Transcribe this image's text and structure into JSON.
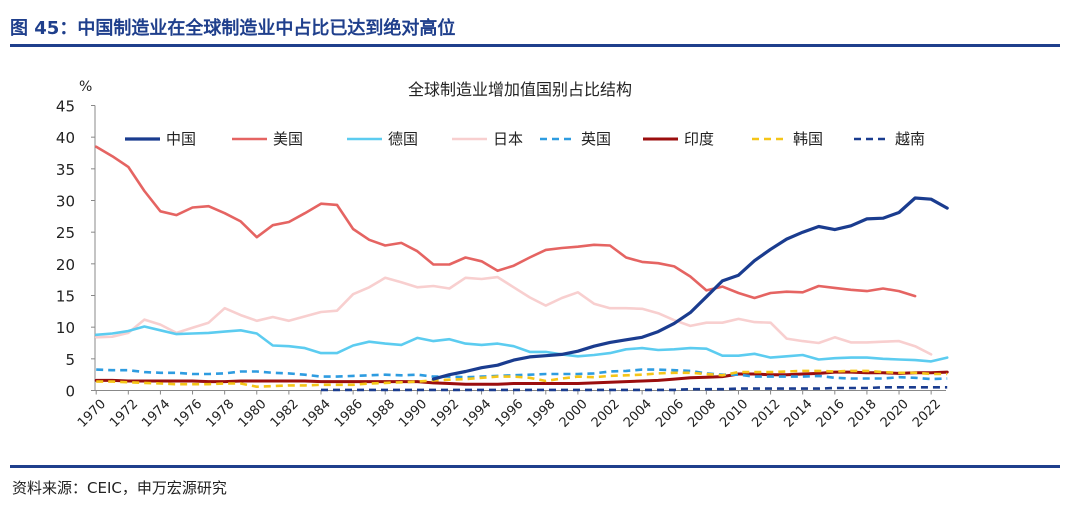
{
  "header": {
    "title": "图 45：中国制造业在全球制造业中占比已达到绝对高位"
  },
  "source": {
    "text": "资料来源：CEIC，申万宏源研究"
  },
  "chart_data": {
    "type": "line",
    "title": "全球制造业增加值国别占比结构",
    "ylabel": "%",
    "xlabel": "",
    "ylim": [
      0,
      45
    ],
    "yticks": [
      0,
      5,
      10,
      15,
      20,
      25,
      30,
      35,
      40,
      45
    ],
    "xticks": [
      1970,
      1972,
      1974,
      1976,
      1978,
      1980,
      1982,
      1984,
      1986,
      1988,
      1990,
      1992,
      1994,
      1996,
      1998,
      2000,
      2002,
      2004,
      2006,
      2008,
      2010,
      2012,
      2014,
      2016,
      2018,
      2020,
      2022
    ],
    "grid": false,
    "legend_position": "top",
    "series": [
      {
        "name": "中国",
        "color": "#1A3C8F",
        "dash": "solid",
        "width": 3.2,
        "x": [
          1991,
          1992,
          1993,
          1994,
          1995,
          1996,
          1997,
          1998,
          1999,
          2000,
          2001,
          2002,
          2003,
          2004,
          2005,
          2006,
          2007,
          2008,
          2009,
          2010,
          2011,
          2012,
          2013,
          2014,
          2015,
          2016,
          2017,
          2018,
          2019,
          2020,
          2021,
          2022,
          2023
        ],
        "values": [
          1.8,
          2.5,
          3.0,
          3.6,
          4.0,
          4.8,
          5.3,
          5.5,
          5.7,
          6.2,
          7.0,
          7.6,
          8.0,
          8.4,
          9.3,
          10.6,
          12.3,
          14.8,
          17.3,
          18.2,
          20.5,
          22.3,
          23.9,
          25.0,
          25.9,
          25.4,
          26.0,
          27.1,
          27.2,
          28.1,
          30.4,
          30.2,
          28.8
        ]
      },
      {
        "name": "美国",
        "color": "#E56462",
        "dash": "solid",
        "width": 2.6,
        "x": [
          1970,
          1971,
          1972,
          1973,
          1974,
          1975,
          1976,
          1977,
          1978,
          1979,
          1980,
          1981,
          1982,
          1983,
          1984,
          1985,
          1986,
          1987,
          1988,
          1989,
          1990,
          1991,
          1992,
          1993,
          1994,
          1995,
          1996,
          1997,
          1998,
          1999,
          2000,
          2001,
          2002,
          2003,
          2004,
          2005,
          2006,
          2007,
          2008,
          2009,
          2010,
          2011,
          2012,
          2013,
          2014,
          2015,
          2016,
          2017,
          2018,
          2019,
          2020,
          2021
        ],
        "values": [
          38.5,
          37.0,
          35.3,
          31.5,
          28.3,
          27.7,
          28.9,
          29.1,
          28.0,
          26.7,
          24.2,
          26.1,
          26.6,
          28.0,
          29.5,
          29.3,
          25.5,
          23.8,
          22.9,
          23.3,
          22.0,
          19.9,
          19.9,
          21.0,
          20.4,
          18.9,
          19.7,
          21.0,
          22.2,
          22.5,
          22.7,
          23.0,
          22.9,
          21.0,
          20.3,
          20.1,
          19.6,
          18.0,
          15.8,
          16.4,
          15.4,
          14.6,
          15.4,
          15.6,
          15.5,
          16.5,
          16.2,
          15.9,
          15.7,
          16.1,
          15.7,
          14.9
        ]
      },
      {
        "name": "德国",
        "color": "#5CCCF0",
        "dash": "solid",
        "width": 2.6,
        "x": [
          1970,
          1971,
          1972,
          1973,
          1974,
          1975,
          1976,
          1977,
          1978,
          1979,
          1980,
          1981,
          1982,
          1983,
          1984,
          1985,
          1986,
          1987,
          1988,
          1989,
          1990,
          1991,
          1992,
          1993,
          1994,
          1995,
          1996,
          1997,
          1998,
          1999,
          2000,
          2001,
          2002,
          2003,
          2004,
          2005,
          2006,
          2007,
          2008,
          2009,
          2010,
          2011,
          2012,
          2013,
          2014,
          2015,
          2016,
          2017,
          2018,
          2019,
          2020,
          2021,
          2022,
          2023
        ],
        "values": [
          8.8,
          9.0,
          9.4,
          10.1,
          9.5,
          8.9,
          9.0,
          9.1,
          9.3,
          9.5,
          9.0,
          7.1,
          7.0,
          6.7,
          5.9,
          5.9,
          7.1,
          7.7,
          7.4,
          7.2,
          8.3,
          7.8,
          8.1,
          7.4,
          7.2,
          7.4,
          7.0,
          6.1,
          6.1,
          5.7,
          5.4,
          5.6,
          5.9,
          6.5,
          6.7,
          6.4,
          6.5,
          6.7,
          6.6,
          5.5,
          5.5,
          5.8,
          5.2,
          5.4,
          5.6,
          4.9,
          5.1,
          5.2,
          5.2,
          5.0,
          4.9,
          4.8,
          4.6,
          5.2
        ]
      },
      {
        "name": "日本",
        "color": "#F8CFCF",
        "dash": "solid",
        "width": 2.6,
        "x": [
          1970,
          1971,
          1972,
          1973,
          1974,
          1975,
          1976,
          1977,
          1978,
          1979,
          1980,
          1981,
          1982,
          1983,
          1984,
          1985,
          1986,
          1987,
          1988,
          1989,
          1990,
          1991,
          1992,
          1993,
          1994,
          1995,
          1996,
          1997,
          1998,
          1999,
          2000,
          2001,
          2002,
          2003,
          2004,
          2005,
          2006,
          2007,
          2008,
          2009,
          2010,
          2011,
          2012,
          2013,
          2014,
          2015,
          2016,
          2017,
          2018,
          2019,
          2020,
          2021,
          2022
        ],
        "values": [
          8.4,
          8.5,
          9.1,
          11.2,
          10.4,
          9.1,
          9.9,
          10.7,
          13.0,
          11.9,
          11.0,
          11.6,
          11.0,
          11.7,
          12.4,
          12.6,
          15.2,
          16.3,
          17.8,
          17.1,
          16.3,
          16.5,
          16.1,
          17.8,
          17.6,
          17.9,
          16.3,
          14.7,
          13.4,
          14.6,
          15.5,
          13.7,
          13.0,
          13.0,
          12.9,
          12.2,
          11.1,
          10.2,
          10.7,
          10.7,
          11.3,
          10.8,
          10.7,
          8.2,
          7.8,
          7.5,
          8.4,
          7.6,
          7.6,
          7.7,
          7.8,
          7.0,
          5.7
        ]
      },
      {
        "name": "英国",
        "color": "#2E9CE0",
        "dash": "dashed",
        "width": 2.6,
        "x": [
          1970,
          1971,
          1972,
          1973,
          1974,
          1975,
          1976,
          1977,
          1978,
          1979,
          1980,
          1981,
          1982,
          1983,
          1984,
          1985,
          1986,
          1987,
          1988,
          1989,
          1990,
          1991,
          1992,
          1993,
          1994,
          1995,
          1996,
          1997,
          1998,
          1999,
          2000,
          2001,
          2002,
          2003,
          2004,
          2005,
          2006,
          2007,
          2008,
          2009,
          2010,
          2011,
          2012,
          2013,
          2014,
          2015,
          2016,
          2017,
          2018,
          2019,
          2020,
          2021,
          2022,
          2023
        ],
        "values": [
          3.3,
          3.2,
          3.2,
          2.9,
          2.8,
          2.8,
          2.6,
          2.6,
          2.7,
          3.0,
          3.0,
          2.8,
          2.7,
          2.5,
          2.2,
          2.2,
          2.3,
          2.4,
          2.5,
          2.4,
          2.5,
          2.2,
          2.2,
          2.1,
          2.2,
          2.3,
          2.4,
          2.5,
          2.6,
          2.6,
          2.6,
          2.7,
          3.0,
          3.1,
          3.3,
          3.3,
          3.2,
          3.1,
          2.7,
          2.5,
          2.5,
          2.2,
          2.2,
          2.2,
          2.2,
          2.3,
          2.0,
          1.9,
          1.9,
          1.9,
          2.1,
          2.0,
          1.8,
          1.9
        ]
      },
      {
        "name": "印度",
        "color": "#9B0E0E",
        "dash": "solid",
        "width": 3.0,
        "x": [
          1970,
          1971,
          1972,
          1973,
          1974,
          1975,
          1976,
          1977,
          1978,
          1979,
          1980,
          1981,
          1982,
          1983,
          1984,
          1985,
          1986,
          1987,
          1988,
          1989,
          1990,
          1991,
          1992,
          1993,
          1994,
          1995,
          1996,
          1997,
          1998,
          1999,
          2000,
          2001,
          2002,
          2003,
          2004,
          2005,
          2006,
          2007,
          2008,
          2009,
          2010,
          2011,
          2012,
          2013,
          2014,
          2015,
          2016,
          2017,
          2018,
          2019,
          2020,
          2021,
          2022,
          2023
        ],
        "values": [
          1.6,
          1.6,
          1.5,
          1.5,
          1.5,
          1.5,
          1.5,
          1.4,
          1.4,
          1.5,
          1.5,
          1.5,
          1.5,
          1.5,
          1.4,
          1.4,
          1.4,
          1.4,
          1.4,
          1.4,
          1.4,
          1.2,
          1.1,
          1.0,
          1.0,
          1.0,
          1.1,
          1.1,
          1.1,
          1.1,
          1.1,
          1.2,
          1.3,
          1.4,
          1.5,
          1.6,
          1.8,
          2.0,
          2.1,
          2.2,
          2.6,
          2.6,
          2.5,
          2.5,
          2.6,
          2.7,
          2.9,
          2.9,
          2.8,
          2.8,
          2.7,
          2.8,
          2.8,
          2.9
        ]
      },
      {
        "name": "韩国",
        "color": "#F5C518",
        "dash": "dashed",
        "width": 2.6,
        "x": [
          1970,
          1971,
          1972,
          1973,
          1974,
          1975,
          1976,
          1977,
          1978,
          1979,
          1980,
          1981,
          1982,
          1983,
          1984,
          1985,
          1986,
          1987,
          1988,
          1989,
          1990,
          1991,
          1992,
          1993,
          1994,
          1995,
          1996,
          1997,
          1998,
          1999,
          2000,
          2001,
          2002,
          2003,
          2004,
          2005,
          2006,
          2007,
          2008,
          2009,
          2010,
          2011,
          2012,
          2013,
          2014,
          2015,
          2016,
          2017,
          2018,
          2019,
          2020,
          2021,
          2022,
          2023
        ],
        "values": [
          1.4,
          1.4,
          1.3,
          1.2,
          1.1,
          1.0,
          1.0,
          1.0,
          1.1,
          1.1,
          0.6,
          0.7,
          0.8,
          0.8,
          0.9,
          0.9,
          0.9,
          1.1,
          1.2,
          1.3,
          1.4,
          1.6,
          1.7,
          1.8,
          2.0,
          2.2,
          2.2,
          2.0,
          1.5,
          1.9,
          2.2,
          2.1,
          2.3,
          2.4,
          2.5,
          2.7,
          2.8,
          2.8,
          2.6,
          2.4,
          2.9,
          2.9,
          2.9,
          3.0,
          3.1,
          3.1,
          3.0,
          3.1,
          3.1,
          2.9,
          2.8,
          2.8,
          2.6,
          2.6
        ]
      },
      {
        "name": "越南",
        "color": "#1A3C8F",
        "dash": "dashed",
        "width": 2.6,
        "x": [
          1984,
          1985,
          1986,
          1987,
          1988,
          1989,
          1990,
          1991,
          1992,
          1993,
          1994,
          1995,
          1996,
          1997,
          1998,
          1999,
          2000,
          2001,
          2002,
          2003,
          2004,
          2005,
          2006,
          2007,
          2008,
          2009,
          2010,
          2011,
          2012,
          2013,
          2014,
          2015,
          2016,
          2017,
          2018,
          2019,
          2020,
          2021,
          2022,
          2023
        ],
        "values": [
          0.1,
          0.1,
          0.1,
          0.1,
          0.1,
          0.1,
          0.1,
          0.1,
          0.1,
          0.1,
          0.1,
          0.1,
          0.1,
          0.1,
          0.1,
          0.1,
          0.1,
          0.1,
          0.1,
          0.1,
          0.1,
          0.1,
          0.1,
          0.2,
          0.2,
          0.2,
          0.3,
          0.3,
          0.3,
          0.3,
          0.3,
          0.3,
          0.4,
          0.4,
          0.4,
          0.5,
          0.5,
          0.5,
          0.5,
          0.5
        ]
      }
    ]
  }
}
